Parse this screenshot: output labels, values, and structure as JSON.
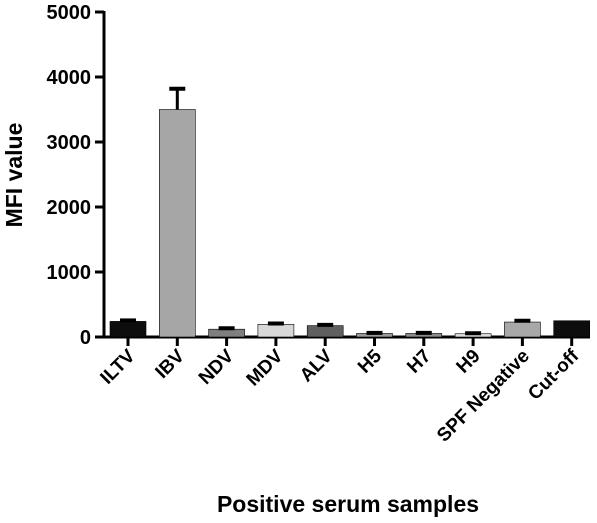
{
  "chart_data": {
    "type": "bar",
    "title": "",
    "xlabel": "Positive serum samples",
    "ylabel": "MFI value",
    "ylim": [
      0,
      5000
    ],
    "yticks": [
      0,
      1000,
      2000,
      3000,
      4000,
      5000
    ],
    "grid": false,
    "categories": [
      "ILTV",
      "IBV",
      "NDV",
      "MDV",
      "ALV",
      "H5",
      "H7",
      "H9",
      "SPF Negative",
      "Cut-off"
    ],
    "values": [
      240,
      3500,
      120,
      195,
      175,
      55,
      55,
      50,
      230,
      250
    ],
    "errors": [
      15,
      320,
      15,
      12,
      12,
      8,
      8,
      8,
      20,
      0
    ],
    "colors": [
      "#0d0d0d",
      "#a6a6a6",
      "#7f7f7f",
      "#d8d8d8",
      "#5f5f5f",
      "#9a9a9a",
      "#8c8c8c",
      "#dedede",
      "#a8a8a8",
      "#0d0d0d"
    ]
  }
}
